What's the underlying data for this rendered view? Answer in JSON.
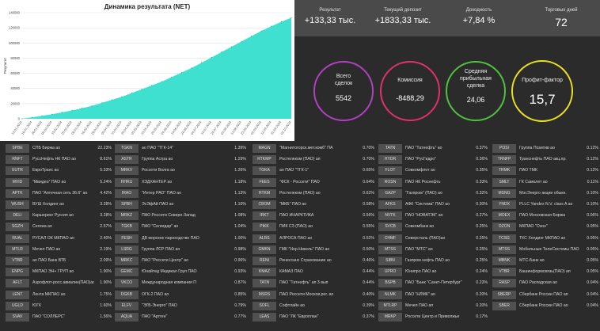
{
  "chart_data": {
    "type": "area",
    "title": "Динамика результата (NET)",
    "xlabel": "",
    "ylabel": "Результат",
    "ylim": [
      0,
      140000
    ],
    "yticks": [
      "0",
      "20000",
      "40000",
      "60000",
      "80000",
      "100000",
      "120000",
      "140000"
    ],
    "x": [
      "13.01.2024",
      "16.01.2024",
      "26.01.2024",
      "05.02.2024",
      "15.02.2024",
      "25.02.2024",
      "06.03.2024",
      "16.03.2024",
      "26.03.2024",
      "05.04.2024",
      "15.04.2024",
      "25.04.2024",
      "05.05.2024",
      "15.05.2024",
      "25.05.2024",
      "04.06.2024",
      "14.06.2024",
      "24.06.2024",
      "04.07.2024",
      "14.07.2024",
      "24.07.2024",
      "03.08.2024",
      "13.08.2024",
      "23.08.2024",
      "02.09.2024",
      "12.09.2024",
      "22.09.2024",
      "02.10.2024"
    ],
    "values": [
      0,
      2000,
      4000,
      6000,
      8500,
      11000,
      14000,
      17000,
      21000,
      25000,
      29000,
      34000,
      39000,
      44000,
      49000,
      55000,
      61000,
      67000,
      74000,
      81000,
      88000,
      95000,
      102000,
      109000,
      116000,
      122000,
      128000,
      133330
    ],
    "fill_color": "#40e0d0",
    "grid": true
  },
  "metrics": [
    {
      "label": "Результат",
      "value": "+133,33 тыс."
    },
    {
      "label": "Текущий депозит",
      "value": "+1833,33 тыс."
    },
    {
      "label": "Доходность",
      "value": "+7,84 %"
    },
    {
      "label": "Торговых дней",
      "value": "72"
    }
  ],
  "circles": [
    {
      "label": "Всего\nсделок",
      "value": "5542",
      "color": "#b040c0"
    },
    {
      "label": "Комиссия",
      "value": "-8488,29",
      "color": "#e03070"
    },
    {
      "label": "Средняя\nприбыльная\nсделка",
      "value": "24,06",
      "color": "#50c040"
    },
    {
      "label": "Профит-фактор",
      "value": "15,7",
      "color": "#e8e020"
    }
  ],
  "tables": [
    [
      {
        "t": "SPBE",
        "n": "СПБ Биржа ао",
        "p": "22.23%"
      },
      {
        "t": "RNFT",
        "n": "РуссНефть НК ПАО ао",
        "p": "8.61%"
      },
      {
        "t": "EUTR",
        "n": "ЕвроТранс ао",
        "p": "5.33%"
      },
      {
        "t": "MVID",
        "n": "\"Мвидео\" ПАО ао",
        "p": "5.24%"
      },
      {
        "t": "APTK",
        "n": "ПАО \"Аптечная сеть 36.6\" ао",
        "p": "4.42%"
      },
      {
        "t": "WUSH",
        "n": "ВУШ Холдинг ао",
        "p": "3.28%"
      },
      {
        "t": "DELI",
        "n": "Каршеринг Руссия ао",
        "p": "3.28%"
      },
      {
        "t": "SGZH",
        "n": "Сегежа ао",
        "p": "2.57%"
      },
      {
        "t": "RUAL",
        "n": "РУСАЛ ОК МКПАО ао",
        "p": "2.40%"
      },
      {
        "t": "MTLR",
        "n": "Мечел ПАО ао",
        "p": "2.19%"
      },
      {
        "t": "VTBR",
        "n": "ао ПАО Банк ВТБ",
        "p": "2.09%"
      },
      {
        "t": "ENPG",
        "n": "МКПАО ЭН+ ГРУП ао",
        "p": "1.90%"
      },
      {
        "t": "AFLT",
        "n": "Аэрофлот-росс.авиалин(ПАО)ао",
        "p": "1.90%"
      },
      {
        "t": "LENT",
        "n": "Лента МКПАО ао",
        "p": "1.75%"
      },
      {
        "t": "UGLD",
        "n": "ЮГК",
        "p": "1.60%"
      },
      {
        "t": "SVAV",
        "n": "ПАО \"СОЛЛЕРС\"",
        "p": "1.56%"
      }
    ],
    [
      {
        "t": "TGKN",
        "n": "ао ПАО \"ТГК-14\"",
        "p": "1.39%"
      },
      {
        "t": "ASTR",
        "n": "Группа Астра ао",
        "p": "1.29%"
      },
      {
        "t": "MRKV",
        "n": "Россети Волга ао",
        "p": "1.26%"
      },
      {
        "t": "HHRU",
        "n": "ХЭДХАНТЕР ао",
        "p": "1.18%"
      },
      {
        "t": "IRAO",
        "n": "\"Интер РАО\" ПАО ао",
        "p": "1.13%"
      },
      {
        "t": "SPBH",
        "n": "ЭсЭфАй ПАО ао",
        "p": "1.10%"
      },
      {
        "t": "MRKZ",
        "n": "ПАО Россети Северо-Запад",
        "p": "1.08%"
      },
      {
        "t": "TGKB",
        "n": "ПАО \"Селигдар\" ао",
        "p": "1.04%"
      },
      {
        "t": "FESH",
        "n": "ДВ морское пароходство ПАО",
        "p": "1.00%"
      },
      {
        "t": "LSRG",
        "n": "Группа ЛСР ПАО ао",
        "p": "0.98%"
      },
      {
        "t": "MRKC",
        "n": "ПАО \"Россети Центр\" ао",
        "p": "0.96%"
      },
      {
        "t": "GEMC",
        "n": "Юнайтед Медикал Груп ПАО",
        "p": "0.93%"
      },
      {
        "t": "VKCO",
        "n": "Международная компания П",
        "p": "0.87%"
      },
      {
        "t": "DGKB",
        "n": "ОГК-2 ПАО ао",
        "p": "0.85%"
      },
      {
        "t": "ELFV",
        "n": "\"ЭЛ5-Энерго\" ПАО",
        "p": "0.79%"
      },
      {
        "t": "AQUA",
        "n": "ПАО \"Артген\"",
        "p": "0.77%"
      }
    ],
    [
      {
        "t": "MAGN",
        "n": "\"Магнитогорск.мет.комб\" ПА",
        "p": "0.70%"
      },
      {
        "t": "RTKMP",
        "n": "Ростелеком (ПАО) ап",
        "p": "0.70%"
      },
      {
        "t": "TGKA",
        "n": "ао ПАО \"ТГК-1\"",
        "p": "0.65%"
      },
      {
        "t": "FEES",
        "n": "\"ФСК - Россети\" ПАО",
        "p": "0.64%"
      },
      {
        "t": "RTKM",
        "n": "Ростелеком (ПАО) ао",
        "p": "0.62%"
      },
      {
        "t": "CBOM",
        "n": "\"МКБ\" ПАО ао",
        "p": "0.58%"
      },
      {
        "t": "IRKT",
        "n": "ПАО ИНАРКТИКА",
        "p": "0.56%"
      },
      {
        "t": "PIKK",
        "n": "ПИК СЗ (ПАО) ао",
        "p": "0.55%"
      },
      {
        "t": "ALRS",
        "n": "АЛРОСА ПАО ао",
        "p": "0.52%"
      },
      {
        "t": "GMKN",
        "n": "ГМК \"Нор.Никель\" ПАО ао",
        "p": "0.50%"
      },
      {
        "t": "RENI",
        "n": "Ренессанс Страхование ао",
        "p": "0.46%"
      },
      {
        "t": "KMAZ",
        "n": "КАМАЗ ПАО",
        "p": "0.44%"
      },
      {
        "t": "TATN",
        "n": "ПАО \"Татнефть\" ап 3 вып",
        "p": "0.44%"
      },
      {
        "t": "MSRS",
        "n": "ПАО Россети Москов.рег. ао",
        "p": "0.40%"
      },
      {
        "t": "SOFL",
        "n": "Софтлайн ао",
        "p": "0.39%"
      },
      {
        "t": "LEAS",
        "n": "ПАО \"ЛК \"Европлан\"",
        "p": "0.37%"
      }
    ],
    [
      {
        "t": "TATN",
        "n": "ПАО \"Татнефть\" ао",
        "p": "0.37%"
      },
      {
        "t": "HYDR",
        "n": "ПАО \"РусГидро\"",
        "p": "0.36%"
      },
      {
        "t": "FLOT",
        "n": "Совкомфлот ао",
        "p": "0.35%"
      },
      {
        "t": "ROSN",
        "n": "ПАО НК Роснефть",
        "p": "0.33%"
      },
      {
        "t": "GAZP",
        "n": "\"Газпром\" (ПАО) ао",
        "p": "0.32%"
      },
      {
        "t": "AFKS",
        "n": "АФК \"Система\" ПАО ао",
        "p": "0.30%"
      },
      {
        "t": "NVTK",
        "n": "ПАО \"НОВАТЭК\" ао",
        "p": "0.27%"
      },
      {
        "t": "SVCB",
        "n": "Совкомбанк ао",
        "p": "0.25%"
      },
      {
        "t": "CHMF",
        "n": "Северсталь (ПАО)ао",
        "p": "0.25%"
      },
      {
        "t": "MTSS",
        "n": "ПАО \"МТС\" ао",
        "p": "0.25%"
      },
      {
        "t": "SIBN",
        "n": "Газпром нефть ПАО ао",
        "p": "0.25%"
      },
      {
        "t": "UPRO",
        "n": "Юнипро ПАО ао",
        "p": "0.24%"
      },
      {
        "t": "BSPB",
        "n": "ПАО \"Банк \"Санкт-Петербург\"",
        "p": "0.23%"
      },
      {
        "t": "NLMK",
        "n": "ПАО \"НЛМК\" ао",
        "p": "0.20%"
      },
      {
        "t": "MTLRP",
        "n": "Мечел ПАО ап",
        "p": "0.20%"
      },
      {
        "t": "MRKP",
        "n": "Россети Центр и Приволжье",
        "p": "0.17%"
      }
    ],
    [
      {
        "t": "POSI",
        "n": "Группа Позитив ао",
        "p": "0.12%"
      },
      {
        "t": "TRNFP",
        "n": "Транснефть ПАО акц.пр.",
        "p": "0.12%"
      },
      {
        "t": "TRMK",
        "n": "ПАО ТМК",
        "p": "0.12%"
      },
      {
        "t": "SMLT",
        "n": "ГК Самолет ао",
        "p": "0.11%"
      },
      {
        "t": "MSNG",
        "n": "МосЭнерго акции обыкн.",
        "p": "0.10%"
      },
      {
        "t": "YNDX",
        "n": "PLLC Yandex N.V. class A ао",
        "p": "0.10%"
      },
      {
        "t": "MOEX",
        "n": "ПАО Московская Биржа",
        "p": "0.06%"
      },
      {
        "t": "OZON",
        "n": "МКПАО \"Озон\"",
        "p": "0.05%"
      },
      {
        "t": "TCSG",
        "n": "ТКС Холдинг МКПАО ао",
        "p": "0.05%"
      },
      {
        "t": "MTSS",
        "n": "Мобильные ТелеСистемы ПАО",
        "p": "0.05%"
      },
      {
        "t": "MBNK",
        "n": "МТС-Банк ао",
        "p": "0.05%"
      },
      {
        "t": "VTBR",
        "n": "Башинформсвязь(ПАО) ап",
        "p": "0.05%"
      },
      {
        "t": "RASP",
        "n": "ПАО Распадская ао",
        "p": "0.04%"
      },
      {
        "t": "SBERP",
        "n": "Сбербанк России ПАО ап",
        "p": "0.04%"
      },
      {
        "t": "SBER",
        "n": "Сбербанк России ПАО ао",
        "p": "0.04%"
      },
      {
        "t": "",
        "n": "",
        "p": ""
      }
    ]
  ]
}
